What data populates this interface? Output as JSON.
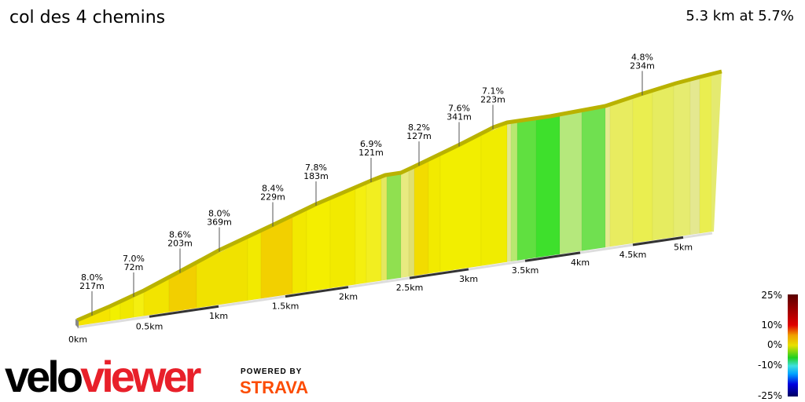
{
  "header": {
    "title": "col des 4 chemins",
    "summary": "5.3 km at 5.7%"
  },
  "chart_data": {
    "type": "area",
    "title": "col des 4 chemins",
    "distance_km": 5.3,
    "average_gradient_pct": 5.7,
    "x_ticks": [
      "0km",
      "0.5km",
      "1km",
      "1.5km",
      "2km",
      "2.5km",
      "3km",
      "3.5km",
      "4km",
      "4.5km",
      "5km"
    ],
    "annotations": [
      {
        "gradient": "8.0%",
        "length": "217m"
      },
      {
        "gradient": "7.0%",
        "length": "72m"
      },
      {
        "gradient": "8.6%",
        "length": "203m"
      },
      {
        "gradient": "8.0%",
        "length": "369m"
      },
      {
        "gradient": "8.4%",
        "length": "229m"
      },
      {
        "gradient": "7.8%",
        "length": "183m"
      },
      {
        "gradient": "6.9%",
        "length": "121m"
      },
      {
        "gradient": "8.2%",
        "length": "127m"
      },
      {
        "gradient": "7.6%",
        "length": "341m"
      },
      {
        "gradient": "7.1%",
        "length": "223m"
      },
      {
        "gradient": "4.8%",
        "length": "234m"
      }
    ],
    "legend": {
      "ticks": [
        "25%",
        "10%",
        "0%",
        "-10%",
        "-25%"
      ],
      "colors": [
        "#5a0000",
        "#e00000",
        "#f0a000",
        "#e8e000",
        "#20d020",
        "#40e0e0",
        "#00a0ff",
        "#0000e0",
        "#000060"
      ]
    }
  },
  "branding": {
    "logo_a": "velo",
    "logo_b": "viewer",
    "powered": "POWERED BY",
    "strava": "STRAVA"
  }
}
